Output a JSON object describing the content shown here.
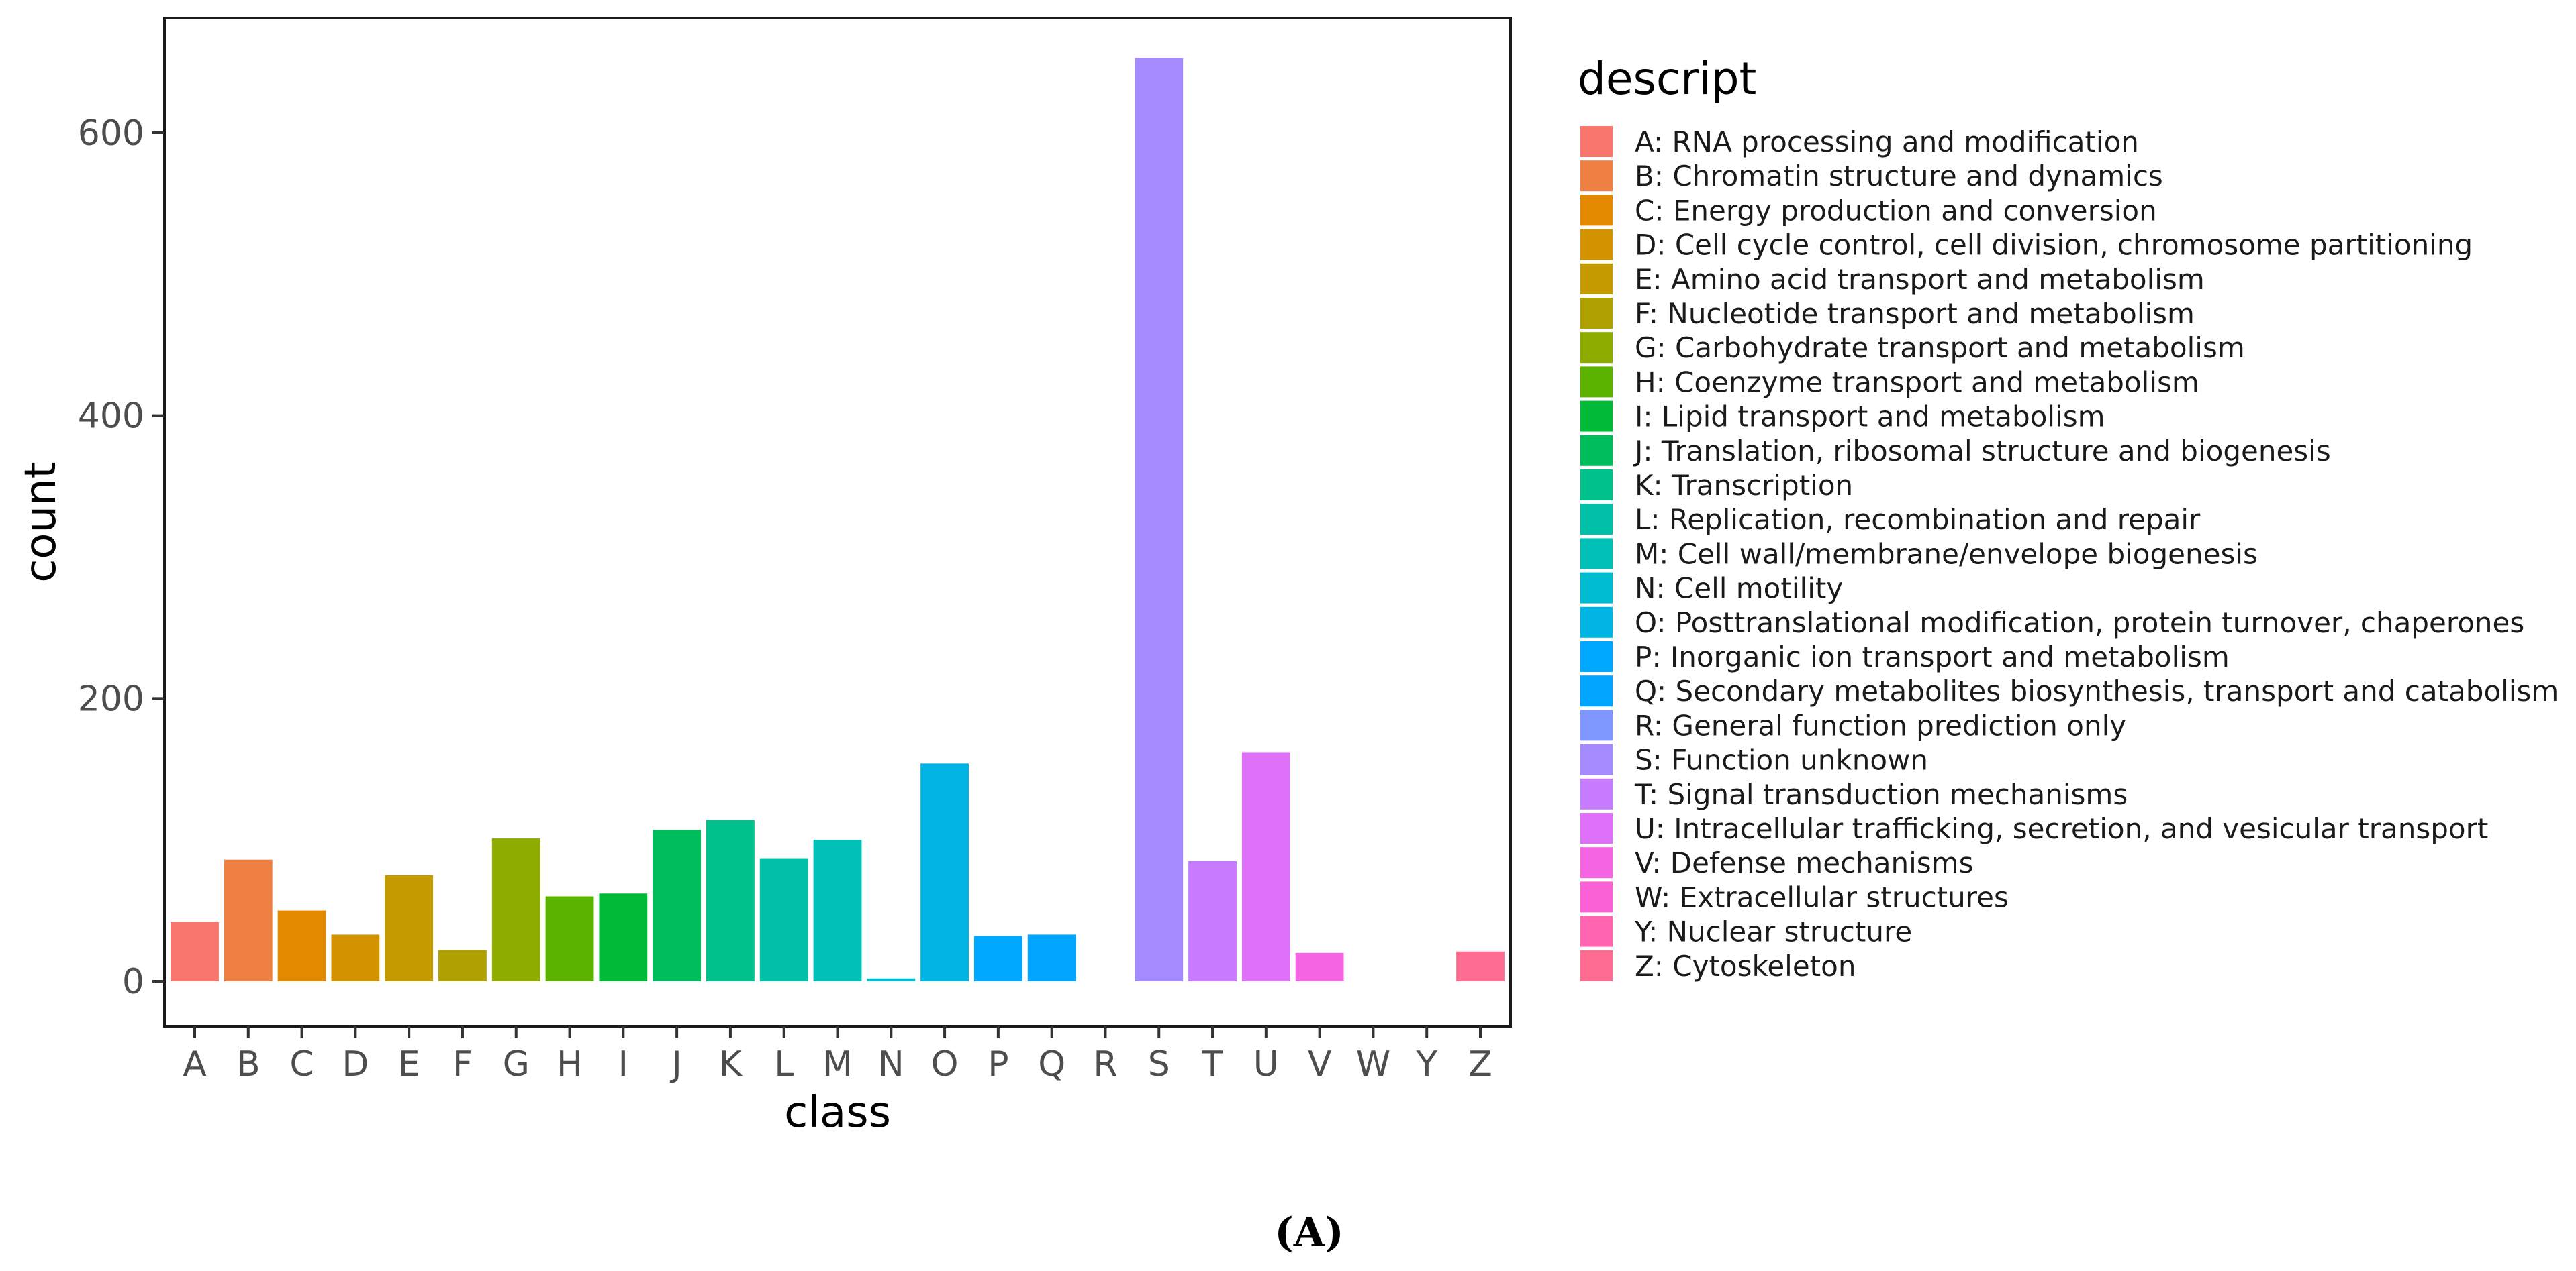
{
  "chart_data": {
    "type": "bar",
    "xlabel": "class",
    "ylabel": "count",
    "ylim": [
      0,
      660
    ],
    "yticks": [
      0,
      200,
      400,
      600
    ],
    "grid": false,
    "legend_title": "descript",
    "legend_position": "right",
    "caption": "(A)",
    "categories": [
      "A",
      "B",
      "C",
      "D",
      "E",
      "F",
      "G",
      "H",
      "I",
      "J",
      "K",
      "L",
      "M",
      "N",
      "O",
      "P",
      "Q",
      "R",
      "S",
      "T",
      "U",
      "V",
      "W",
      "Y",
      "Z"
    ],
    "values": [
      42,
      86,
      50,
      33,
      75,
      22,
      101,
      60,
      62,
      107,
      114,
      87,
      100,
      2,
      154,
      32,
      33,
      0,
      653,
      85,
      162,
      20,
      0,
      0,
      21
    ],
    "legend": [
      {
        "key": "A",
        "label": "A:  RNA processing and modification",
        "color": "#F8766D"
      },
      {
        "key": "B",
        "label": "B:  Chromatin structure and dynamics",
        "color": "#EE8044"
      },
      {
        "key": "C",
        "label": "C:  Energy production and conversion",
        "color": "#E38900"
      },
      {
        "key": "D",
        "label": "D:  Cell cycle control, cell division, chromosome partitioning",
        "color": "#D39200"
      },
      {
        "key": "E",
        "label": "E:  Amino acid transport and metabolism",
        "color": "#C49A00"
      },
      {
        "key": "F",
        "label": "F:  Nucleotide transport and metabolism",
        "color": "#AFA100"
      },
      {
        "key": "G",
        "label": "G:  Carbohydrate transport and metabolism",
        "color": "#8EAB00"
      },
      {
        "key": "H",
        "label": "H:  Coenzyme transport and metabolism",
        "color": "#5BB300"
      },
      {
        "key": "I",
        "label": "I:  Lipid transport and metabolism",
        "color": "#00BA38"
      },
      {
        "key": "J",
        "label": "J:  Translation, ribosomal structure and biogenesis",
        "color": "#00BD5C"
      },
      {
        "key": "K",
        "label": "K:  Transcription",
        "color": "#00C08B"
      },
      {
        "key": "L",
        "label": "L:  Replication, recombination and repair",
        "color": "#00C1A7"
      },
      {
        "key": "M",
        "label": "M:  Cell wall/membrane/envelope biogenesis",
        "color": "#00C0B8"
      },
      {
        "key": "N",
        "label": "N:  Cell motility",
        "color": "#00BCD1"
      },
      {
        "key": "O",
        "label": "O:  Posttranslational modification, protein turnover, chaperones",
        "color": "#00B4E4"
      },
      {
        "key": "P",
        "label": "P:  Inorganic ion transport and metabolism",
        "color": "#00A9FF"
      },
      {
        "key": "Q",
        "label": "Q:  Secondary metabolites biosynthesis, transport and catabolism",
        "color": "#00A5FF"
      },
      {
        "key": "R",
        "label": "R:  General function prediction only",
        "color": "#7F96FF"
      },
      {
        "key": "S",
        "label": "S:  Function unknown",
        "color": "#A58AFF"
      },
      {
        "key": "T",
        "label": "T:  Signal transduction mechanisms",
        "color": "#C77CFF"
      },
      {
        "key": "U",
        "label": "U:  Intracellular trafficking, secretion, and vesicular transport",
        "color": "#DF70F8"
      },
      {
        "key": "V",
        "label": "V:  Defense mechanisms",
        "color": "#F564E3"
      },
      {
        "key": "W",
        "label": "W:  Extracellular structures",
        "color": "#FB61D7"
      },
      {
        "key": "Y",
        "label": "Y:  Nuclear structure",
        "color": "#FF64B0"
      },
      {
        "key": "Z",
        "label": "Z:  Cytoskeleton",
        "color": "#FF6C91"
      }
    ]
  }
}
